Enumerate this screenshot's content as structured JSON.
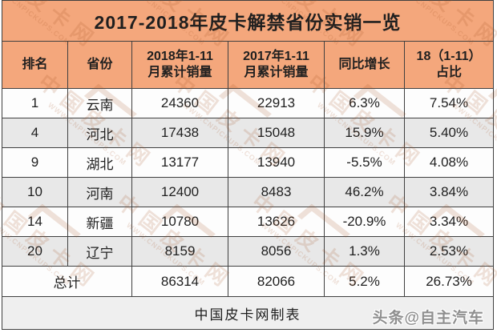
{
  "chart_data": {
    "type": "table",
    "title": "2017-2018年皮卡解禁省份实销一览",
    "columns": [
      "排名",
      "省份",
      "2018年1-11月累计销量",
      "2017年1-11月累计销量",
      "同比增长",
      "18（1-11）占比"
    ],
    "rows": [
      [
        "1",
        "云南",
        "24360",
        "22913",
        "6.3%",
        "7.54%"
      ],
      [
        "4",
        "河北",
        "17438",
        "15048",
        "15.9%",
        "5.40%"
      ],
      [
        "9",
        "湖北",
        "13177",
        "13940",
        "-5.5%",
        "4.08%"
      ],
      [
        "10",
        "河南",
        "12400",
        "8483",
        "46.2%",
        "3.84%"
      ],
      [
        "14",
        "新疆",
        "10780",
        "13626",
        "-20.9%",
        "3.34%"
      ],
      [
        "20",
        "辽宁",
        "8159",
        "8056",
        "1.3%",
        "2.53%"
      ]
    ],
    "total_row": [
      "总计",
      "86314",
      "82066",
      "5.2%",
      "26.73%"
    ],
    "source_note": "中国皮卡网制表"
  },
  "ui": {
    "headers_display": [
      "排名",
      "省份",
      "2018年1-11\n月累计销量",
      "2017年1-11\n月累计销量",
      "同比增长",
      "18（1-11）\n占比"
    ],
    "badge": "头条@自主汽车",
    "watermark": {
      "site_text": "中国皮卡网",
      "url_text": "WWW.CNPICKUPS.COM"
    }
  },
  "colors": {
    "orange": "#f4a77c",
    "border": "#404040",
    "row_alt": "#e8e8e8",
    "footer_bg": "#efefef"
  }
}
